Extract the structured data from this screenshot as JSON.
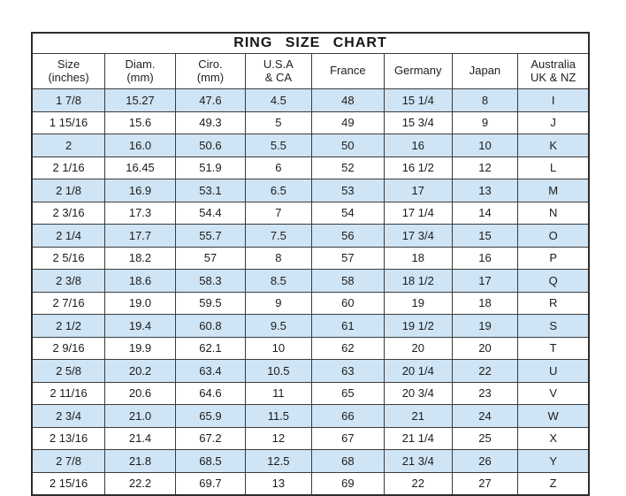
{
  "title": "RING SIZE CHART",
  "colors": {
    "row_alt_blue": "#cfe4f4",
    "border": "#3b3b3b",
    "text": "#1c1c1c",
    "background": "#ffffff"
  },
  "chart_data": {
    "type": "table",
    "title": "RING SIZE CHART",
    "layout": "alternating rows shaded light blue starting with first data row; all cells center-aligned",
    "columns": [
      {
        "id": "size-inches",
        "lines": [
          "Size",
          "(inches)"
        ]
      },
      {
        "id": "diam-mm",
        "lines": [
          "Diam.",
          "(mm)"
        ]
      },
      {
        "id": "ciro-mm",
        "lines": [
          "Ciro.",
          "(mm)"
        ]
      },
      {
        "id": "usa-ca",
        "lines": [
          "U.S.A",
          "& CA"
        ]
      },
      {
        "id": "france",
        "lines": [
          "France"
        ]
      },
      {
        "id": "germany",
        "lines": [
          "Germany"
        ]
      },
      {
        "id": "japan",
        "lines": [
          "Japan"
        ]
      },
      {
        "id": "australia-uk-nz",
        "lines": [
          "Australia",
          "UK & NZ"
        ]
      }
    ],
    "rows": [
      [
        "1 7/8",
        "15.27",
        "47.6",
        "4.5",
        "48",
        "15 1/4",
        "8",
        "I"
      ],
      [
        "1 15/16",
        "15.6",
        "49.3",
        "5",
        "49",
        "15 3/4",
        "9",
        "J"
      ],
      [
        "2",
        "16.0",
        "50.6",
        "5.5",
        "50",
        "16",
        "10",
        "K"
      ],
      [
        "2 1/16",
        "16.45",
        "51.9",
        "6",
        "52",
        "16 1/2",
        "12",
        "L"
      ],
      [
        "2 1/8",
        "16.9",
        "53.1",
        "6.5",
        "53",
        "17",
        "13",
        "M"
      ],
      [
        "2 3/16",
        "17.3",
        "54.4",
        "7",
        "54",
        "17 1/4",
        "14",
        "N"
      ],
      [
        "2 1/4",
        "17.7",
        "55.7",
        "7.5",
        "56",
        "17 3/4",
        "15",
        "O"
      ],
      [
        "2 5/16",
        "18.2",
        "57",
        "8",
        "57",
        "18",
        "16",
        "P"
      ],
      [
        "2 3/8",
        "18.6",
        "58.3",
        "8.5",
        "58",
        "18 1/2",
        "17",
        "Q"
      ],
      [
        "2 7/16",
        "19.0",
        "59.5",
        "9",
        "60",
        "19",
        "18",
        "R"
      ],
      [
        "2 1/2",
        "19.4",
        "60.8",
        "9.5",
        "61",
        "19 1/2",
        "19",
        "S"
      ],
      [
        "2 9/16",
        "19.9",
        "62.1",
        "10",
        "62",
        "20",
        "20",
        "T"
      ],
      [
        "2 5/8",
        "20.2",
        "63.4",
        "10.5",
        "63",
        "20 1/4",
        "22",
        "U"
      ],
      [
        "2 11/16",
        "20.6",
        "64.6",
        "11",
        "65",
        "20 3/4",
        "23",
        "V"
      ],
      [
        "2 3/4",
        "21.0",
        "65.9",
        "11.5",
        "66",
        "21",
        "24",
        "W"
      ],
      [
        "2 13/16",
        "21.4",
        "67.2",
        "12",
        "67",
        "21 1/4",
        "25",
        "X"
      ],
      [
        "2 7/8",
        "21.8",
        "68.5",
        "12.5",
        "68",
        "21 3/4",
        "26",
        "Y"
      ],
      [
        "2 15/16",
        "22.2",
        "69.7",
        "13",
        "69",
        "22",
        "27",
        "Z"
      ]
    ]
  }
}
